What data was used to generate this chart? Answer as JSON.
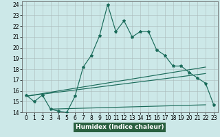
{
  "xlabel": "Humidex (Indice chaleur)",
  "bg_color": "#cce8e8",
  "line_color": "#1a6b5a",
  "xlim": [
    -0.5,
    23.5
  ],
  "ylim": [
    14,
    24.3
  ],
  "xticks": [
    0,
    1,
    2,
    3,
    4,
    5,
    6,
    7,
    8,
    9,
    10,
    11,
    12,
    13,
    14,
    15,
    16,
    17,
    18,
    19,
    20,
    21,
    22,
    23
  ],
  "yticks": [
    14,
    15,
    16,
    17,
    18,
    19,
    20,
    21,
    22,
    23,
    24
  ],
  "line1_x": [
    0,
    1,
    2,
    3,
    4,
    5,
    6,
    7,
    8,
    9,
    10,
    11,
    12,
    13,
    14,
    15,
    16,
    17,
    18,
    19,
    20,
    21,
    22,
    23
  ],
  "line1_y": [
    15.6,
    15.0,
    15.6,
    14.3,
    14.1,
    14.0,
    15.5,
    18.2,
    19.3,
    21.1,
    24.0,
    21.5,
    22.5,
    21.0,
    21.5,
    21.5,
    19.8,
    19.3,
    18.3,
    18.3,
    17.7,
    17.2,
    16.7,
    14.7
  ],
  "line2_x": [
    0,
    22
  ],
  "line2_y": [
    15.5,
    18.2
  ],
  "line3_x": [
    0,
    22
  ],
  "line3_y": [
    15.5,
    17.6
  ],
  "line4_x": [
    3,
    22
  ],
  "line4_y": [
    14.3,
    14.7
  ],
  "xlabel_bg": "#2a6040",
  "xlabel_color": "#ffffff",
  "tick_fontsize": 5.5,
  "xlabel_fontsize": 6.5
}
